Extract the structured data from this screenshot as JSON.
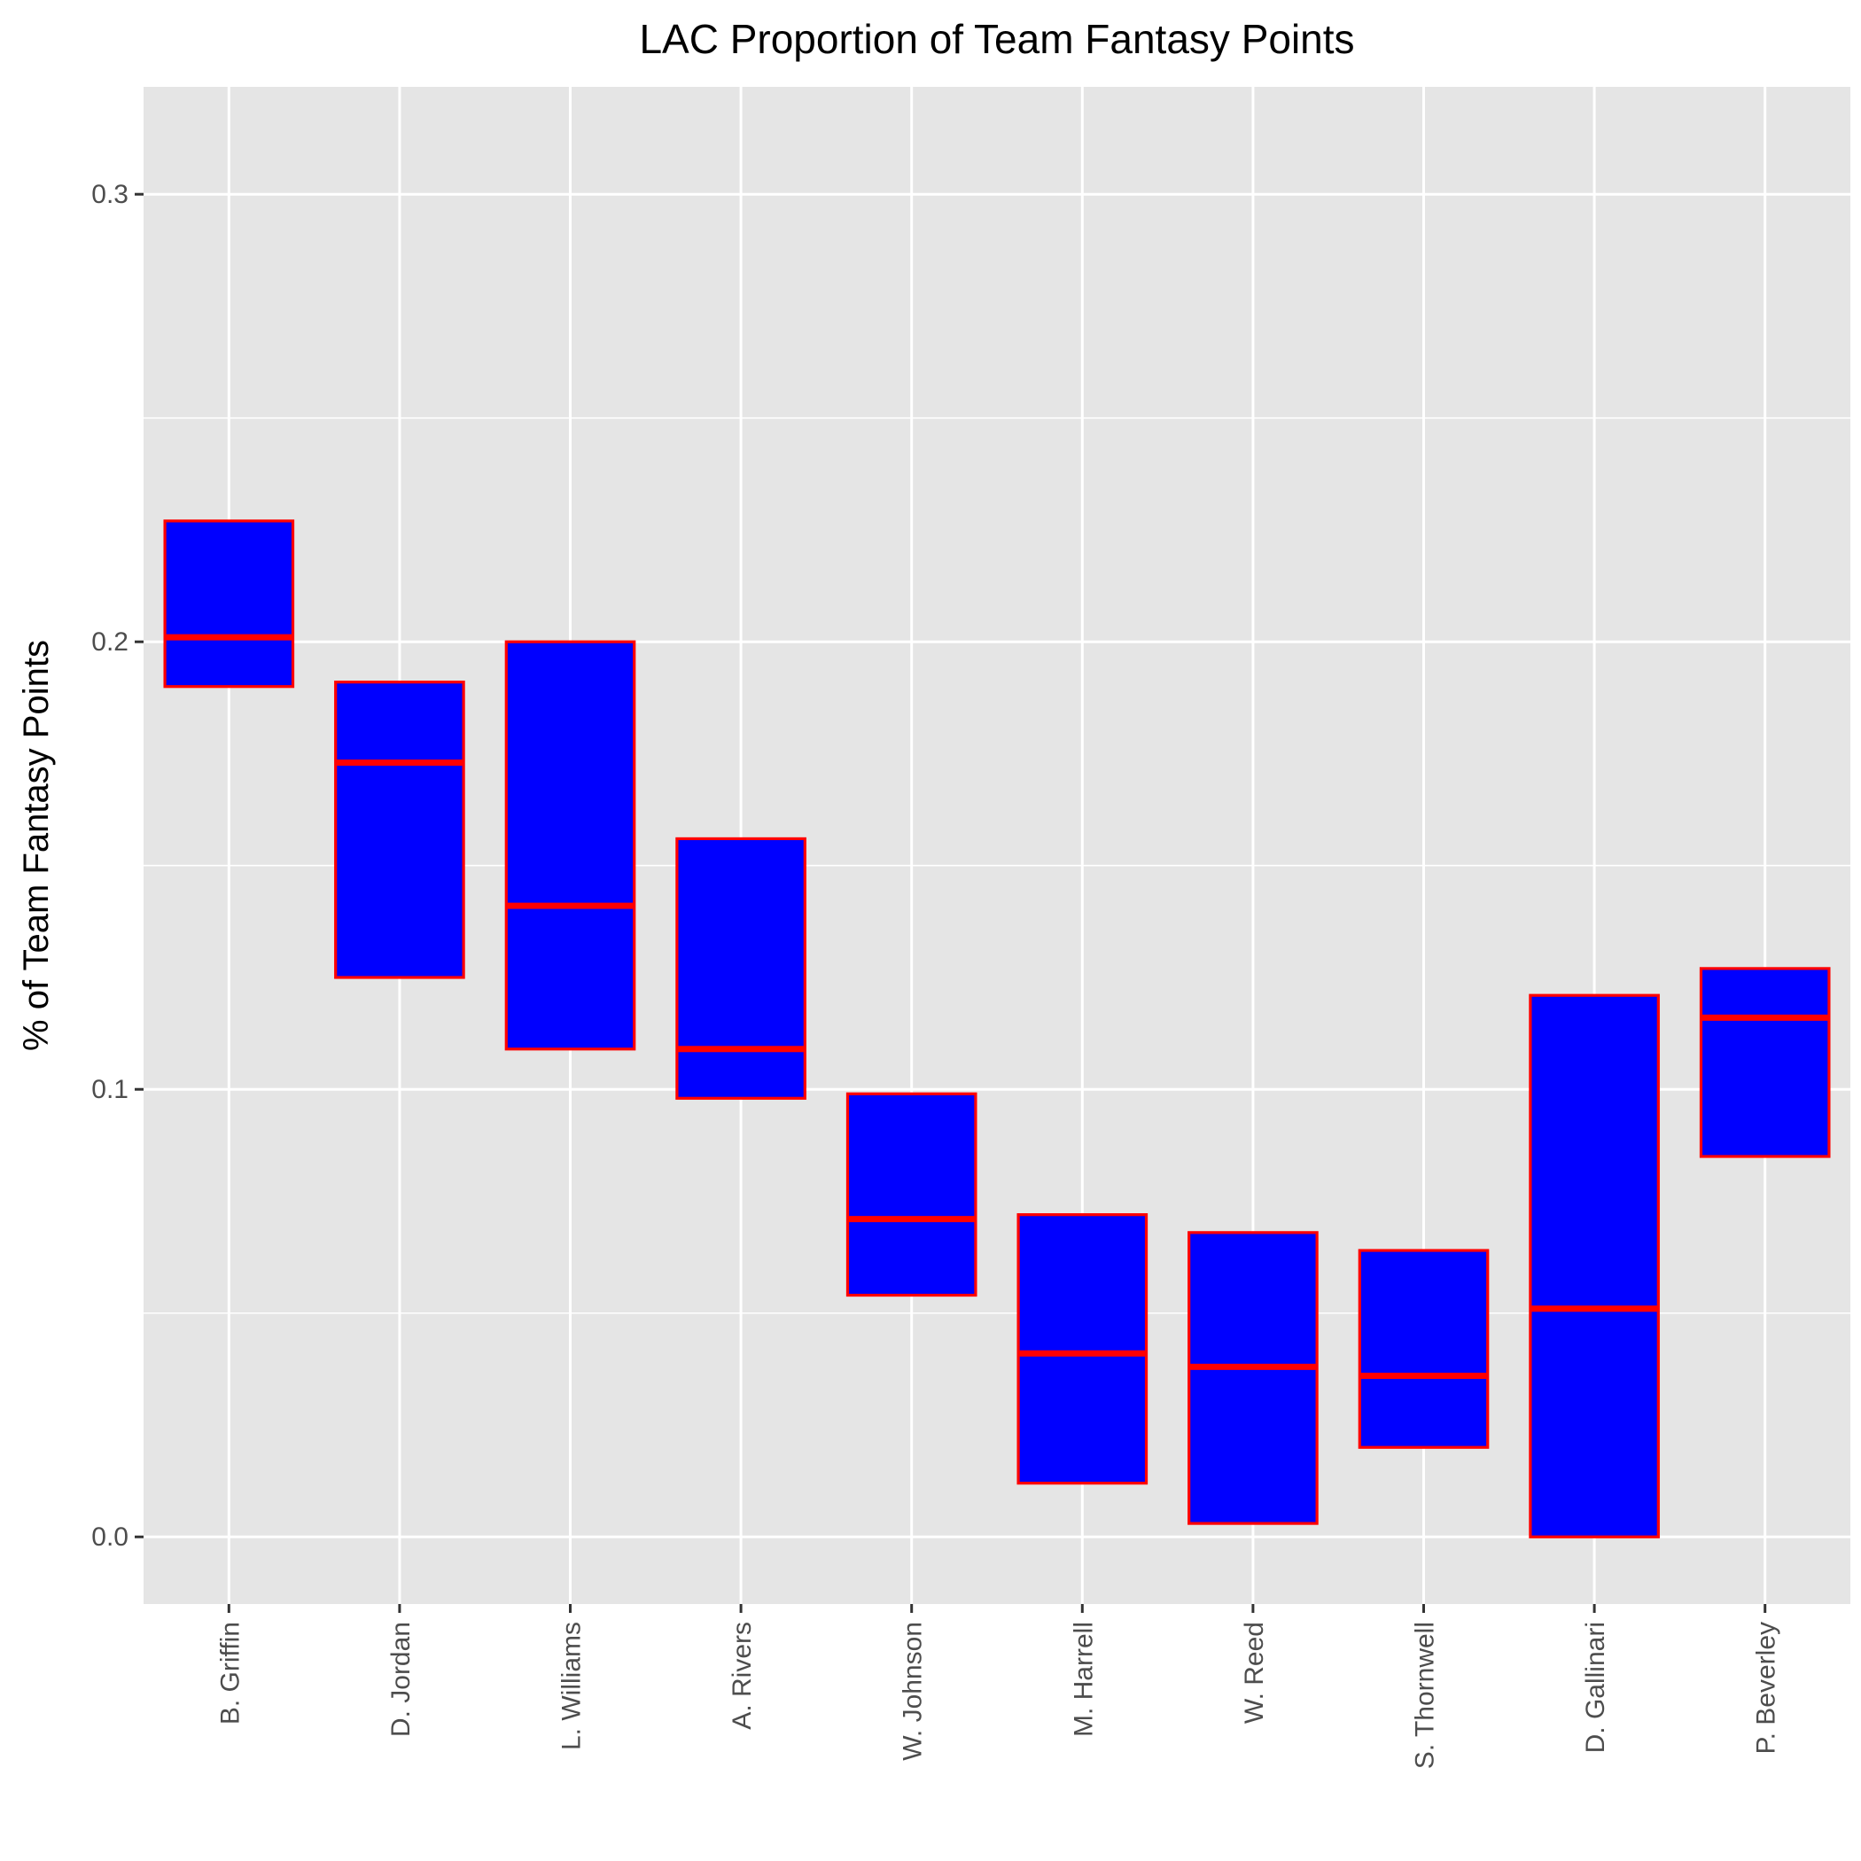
{
  "chart_data": {
    "type": "boxplot",
    "title": "LAC Proportion of Team Fantasy Points",
    "xlabel": "",
    "ylabel": "% of Team Fantasy Points",
    "ylim": [
      -0.015,
      0.324
    ],
    "yticks": [
      "0.0",
      "0.1",
      "0.2",
      "0.3"
    ],
    "ytick_values": [
      0.0,
      0.1,
      0.2,
      0.3
    ],
    "grid": true,
    "categories": [
      "B. Griffin",
      "D. Jordan",
      "L. Williams",
      "A. Rivers",
      "W. Johnson",
      "M. Harrell",
      "W. Reed",
      "S. Thornwell",
      "D. Gallinari",
      "P. Beverley"
    ],
    "boxes": [
      {
        "q1": 0.19,
        "median": 0.201,
        "q3": 0.227
      },
      {
        "q1": 0.125,
        "median": 0.173,
        "q3": 0.191
      },
      {
        "q1": 0.109,
        "median": 0.141,
        "q3": 0.2
      },
      {
        "q1": 0.098,
        "median": 0.109,
        "q3": 0.156
      },
      {
        "q1": 0.054,
        "median": 0.071,
        "q3": 0.099
      },
      {
        "q1": 0.012,
        "median": 0.041,
        "q3": 0.072
      },
      {
        "q1": 0.003,
        "median": 0.038,
        "q3": 0.068
      },
      {
        "q1": 0.02,
        "median": 0.036,
        "q3": 0.064
      },
      {
        "q1": 0.0,
        "median": 0.051,
        "q3": 0.121
      },
      {
        "q1": 0.085,
        "median": 0.116,
        "q3": 0.127
      }
    ],
    "colors": {
      "fill": "#0000ff",
      "outline": "#ff0000",
      "panel": "#e5e5e5",
      "grid": "#ffffff"
    }
  }
}
